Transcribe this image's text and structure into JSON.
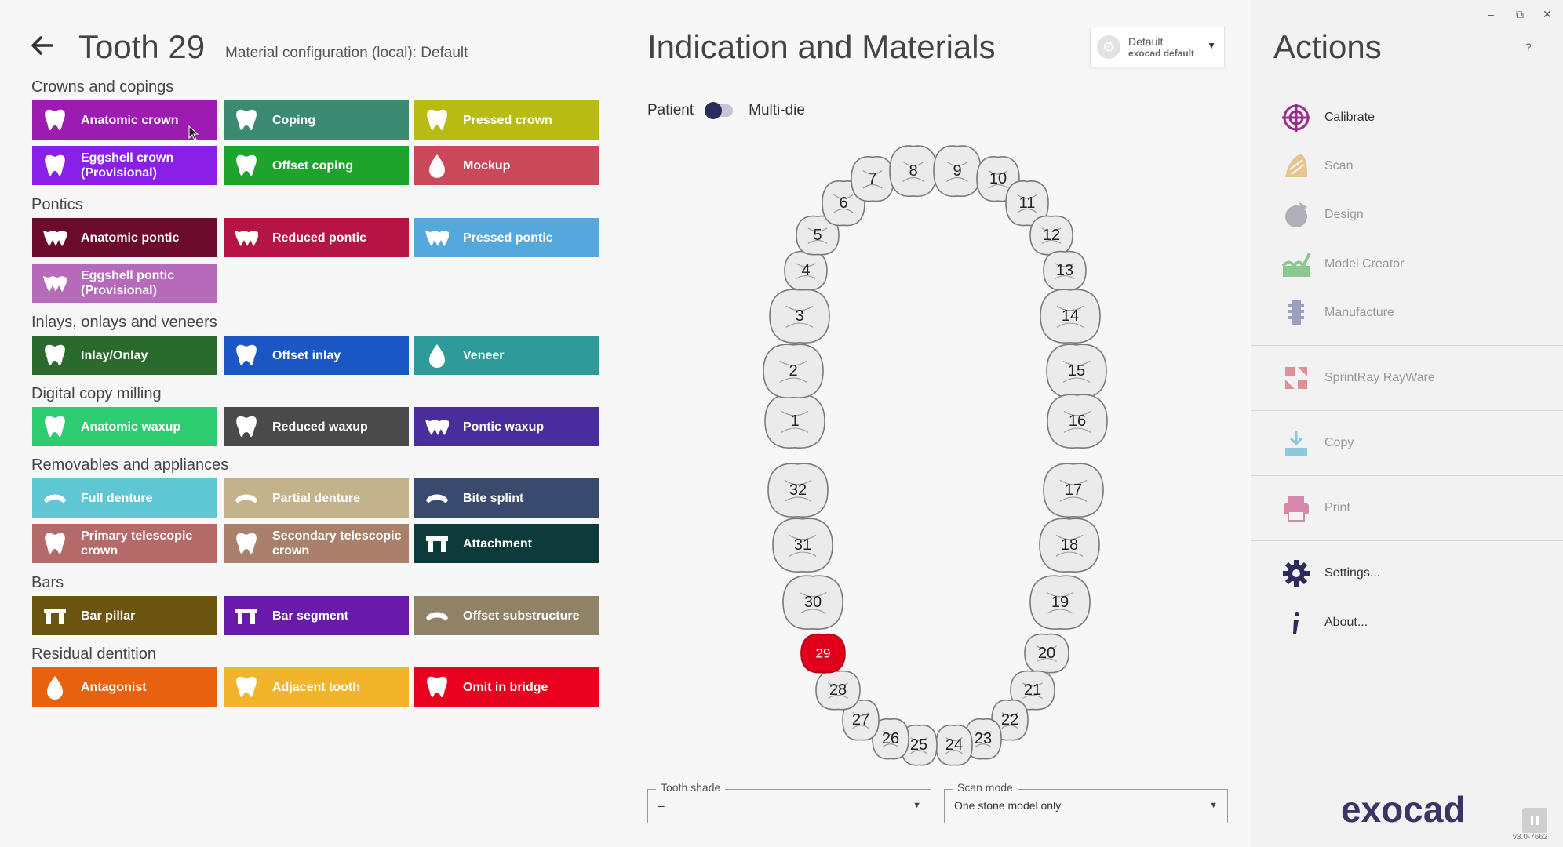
{
  "header": {
    "back_icon": "arrow-left-icon",
    "title": "Tooth 29",
    "subtitle": "Material configuration (local): Default"
  },
  "categories": [
    {
      "label": "Crowns and copings",
      "items": [
        {
          "label": "Anatomic crown",
          "color": "#9c1bb0",
          "icon": "crown-icon"
        },
        {
          "label": "Coping",
          "color": "#3d8a72",
          "icon": "coping-icon"
        },
        {
          "label": "Pressed crown",
          "color": "#b7bb12",
          "icon": "pressed-crown-icon"
        },
        {
          "label": "Eggshell crown (Provisional)",
          "color": "#8a1fe8",
          "icon": "eggshell-crown-icon"
        },
        {
          "label": "Offset coping",
          "color": "#1ea32c",
          "icon": "offset-coping-icon"
        },
        {
          "label": "Mockup",
          "color": "#c9485a",
          "icon": "mockup-icon"
        }
      ]
    },
    {
      "label": "Pontics",
      "items": [
        {
          "label": "Anatomic pontic",
          "color": "#6b0a2a",
          "icon": "pontic-icon"
        },
        {
          "label": "Reduced pontic",
          "color": "#b51445",
          "icon": "reduced-pontic-icon"
        },
        {
          "label": "Pressed pontic",
          "color": "#55a8dc",
          "icon": "pressed-pontic-icon"
        },
        {
          "label": "Eggshell pontic (Provisional)",
          "color": "#b66aba",
          "icon": "eggshell-pontic-icon"
        }
      ]
    },
    {
      "label": "Inlays, onlays and veneers",
      "items": [
        {
          "label": "Inlay/Onlay",
          "color": "#2a6a2d",
          "icon": "inlay-icon"
        },
        {
          "label": "Offset inlay",
          "color": "#1a56c4",
          "icon": "offset-inlay-icon"
        },
        {
          "label": "Veneer",
          "color": "#2f9a9a",
          "icon": "veneer-icon"
        }
      ]
    },
    {
      "label": "Digital copy milling",
      "items": [
        {
          "label": "Anatomic waxup",
          "color": "#2ecc71",
          "icon": "waxup-icon"
        },
        {
          "label": "Reduced waxup",
          "color": "#4a4a4a",
          "icon": "reduced-waxup-icon"
        },
        {
          "label": "Pontic waxup",
          "color": "#4a2d9c",
          "icon": "pontic-waxup-icon"
        }
      ]
    },
    {
      "label": "Removables and appliances",
      "items": [
        {
          "label": "Full denture",
          "color": "#5fc6d4",
          "icon": "full-denture-icon"
        },
        {
          "label": "Partial denture",
          "color": "#c4b38a",
          "icon": "partial-denture-icon"
        },
        {
          "label": "Bite splint",
          "color": "#3a4a6e",
          "icon": "bite-splint-icon"
        },
        {
          "label": "Primary telescopic crown",
          "color": "#b56a6a",
          "icon": "primary-telescopic-icon"
        },
        {
          "label": "Secondary telescopic crown",
          "color": "#a8806b",
          "icon": "secondary-telescopic-icon"
        },
        {
          "label": "Attachment",
          "color": "#0d3a3a",
          "icon": "attachment-icon"
        }
      ]
    },
    {
      "label": "Bars",
      "items": [
        {
          "label": "Bar pillar",
          "color": "#6b5410",
          "icon": "bar-pillar-icon"
        },
        {
          "label": "Bar segment",
          "color": "#6a1aa8",
          "icon": "bar-segment-icon"
        },
        {
          "label": "Offset substructure",
          "color": "#8f8266",
          "icon": "offset-substructure-icon"
        }
      ]
    },
    {
      "label": "Residual dentition",
      "items": [
        {
          "label": "Antagonist",
          "color": "#e8610e",
          "icon": "antagonist-icon"
        },
        {
          "label": "Adjacent tooth",
          "color": "#f2b42a",
          "icon": "adjacent-tooth-icon"
        },
        {
          "label": "Omit in bridge",
          "color": "#e8001e",
          "icon": "omit-icon"
        }
      ]
    }
  ],
  "center": {
    "title": "Indication and Materials",
    "preset": {
      "line1": "Default",
      "line2": "exocad default",
      "icon": "gear-icon"
    },
    "toggle": {
      "left": "Patient",
      "right": "Multi-die",
      "state": "patient"
    },
    "selected_tooth": 29,
    "teeth": [
      1,
      2,
      3,
      4,
      5,
      6,
      7,
      8,
      9,
      10,
      11,
      12,
      13,
      14,
      15,
      16,
      17,
      18,
      19,
      20,
      21,
      22,
      23,
      24,
      25,
      26,
      27,
      28,
      29,
      30,
      31,
      32
    ],
    "tooth_shade": {
      "label": "Tooth shade",
      "value": "--"
    },
    "scan_mode": {
      "label": "Scan mode",
      "value": "One stone model only"
    }
  },
  "actions": {
    "title": "Actions",
    "help": "?",
    "items": [
      {
        "label": "Calibrate",
        "icon": "calibrate-icon",
        "enabled": true,
        "color": "#9a2d8a"
      },
      {
        "label": "Scan",
        "icon": "scan-icon",
        "enabled": false,
        "color": "#e0a040"
      },
      {
        "label": "Design",
        "icon": "design-icon",
        "enabled": false,
        "color": "#7a7a8a"
      },
      {
        "label": "Model Creator",
        "icon": "model-creator-icon",
        "enabled": false,
        "color": "#3aa843"
      },
      {
        "label": "Manufacture",
        "icon": "manufacture-icon",
        "enabled": false,
        "color": "#5a5a9a"
      },
      {
        "label": "SprintRay RayWare",
        "icon": "rayware-icon",
        "enabled": false,
        "color": "#d04050"
      },
      {
        "label": "Copy",
        "icon": "copy-icon",
        "enabled": false,
        "color": "#3aa8c8"
      },
      {
        "label": "Print",
        "icon": "print-icon",
        "enabled": false,
        "color": "#c03070"
      },
      {
        "label": "Settings...",
        "icon": "gear-icon",
        "enabled": true,
        "color": "#2d2a5c"
      },
      {
        "label": "About...",
        "icon": "info-icon",
        "enabled": true,
        "color": "#2d2a5c"
      }
    ],
    "logo": "exocad",
    "version": "v3.0-7662"
  }
}
